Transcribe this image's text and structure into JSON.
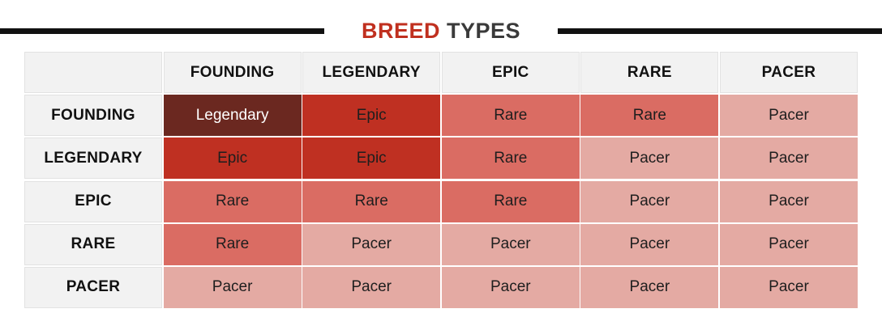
{
  "title": {
    "word1": "BREED",
    "word2": "TYPES"
  },
  "columns": [
    "FOUNDING",
    "LEGENDARY",
    "EPIC",
    "RARE",
    "PACER"
  ],
  "rows": [
    {
      "label": "FOUNDING",
      "cells": [
        "Legendary",
        "Epic",
        "Rare",
        "Rare",
        "Pacer"
      ]
    },
    {
      "label": "LEGENDARY",
      "cells": [
        "Epic",
        "Epic",
        "Rare",
        "Pacer",
        "Pacer"
      ]
    },
    {
      "label": "EPIC",
      "cells": [
        "Rare",
        "Rare",
        "Rare",
        "Pacer",
        "Pacer"
      ]
    },
    {
      "label": "RARE",
      "cells": [
        "Rare",
        "Pacer",
        "Pacer",
        "Pacer",
        "Pacer"
      ]
    },
    {
      "label": "PACER",
      "cells": [
        "Pacer",
        "Pacer",
        "Pacer",
        "Pacer",
        "Pacer"
      ]
    }
  ],
  "colors": {
    "Legendary": "#6b2820",
    "Epic": "#bf3022",
    "Rare": "#da6c63",
    "Pacer": "#e4aaa3",
    "title_accent": "#c0301f"
  }
}
